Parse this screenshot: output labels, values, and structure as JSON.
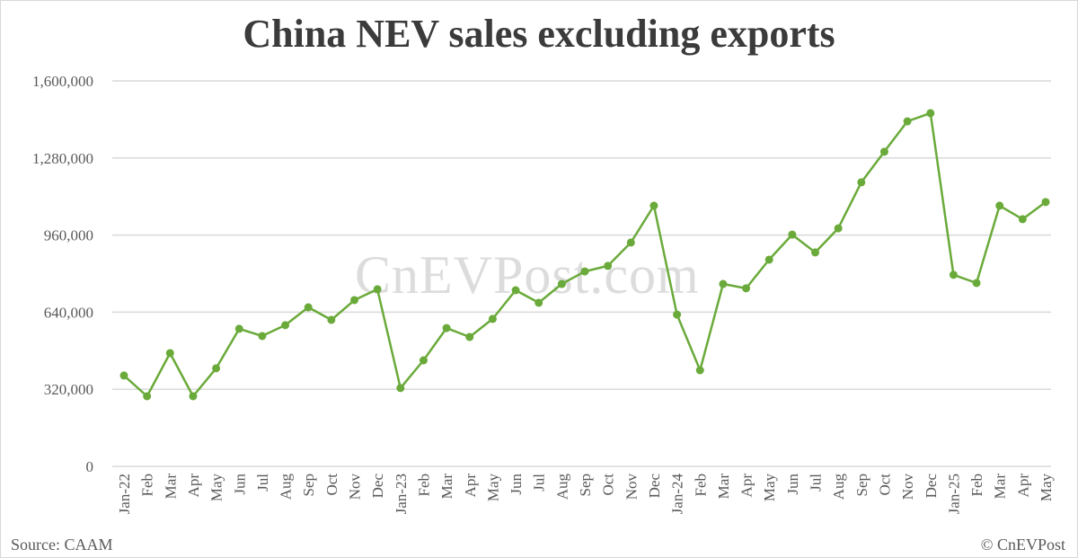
{
  "title": "China NEV sales excluding exports",
  "watermark": "CnEVPost.com",
  "footer": {
    "source": "Source: CAAM",
    "copyright": "© CnEVPost"
  },
  "colors": {
    "line": "#6aaa3a",
    "grid": "#d9d9d9",
    "text": "#595959",
    "title": "#3b3b3b"
  },
  "chart_data": {
    "type": "line",
    "title": "China NEV sales excluding exports",
    "xlabel": "",
    "ylabel": "",
    "ylim": [
      0,
      1600000
    ],
    "yticks": [
      0,
      320000,
      640000,
      960000,
      1280000,
      1600000
    ],
    "ytick_labels": [
      "0",
      "320,000",
      "640,000",
      "960,000",
      "1,280,000",
      "1,600,000"
    ],
    "grid": true,
    "legend": "none",
    "categories": [
      "Jan-22",
      "Feb",
      "Mar",
      "Apr",
      "May",
      "Jun",
      "Jul",
      "Aug",
      "Sep",
      "Oct",
      "Nov",
      "Dec",
      "Jan-23",
      "Feb",
      "Mar",
      "Apr",
      "May",
      "Jun",
      "Jul",
      "Aug",
      "Sep",
      "Oct",
      "Nov",
      "Dec",
      "Jan-24",
      "Feb",
      "Mar",
      "Apr",
      "May",
      "Jun",
      "Jul",
      "Aug",
      "Sep",
      "Oct",
      "Nov",
      "Dec",
      "Jan-25",
      "Feb",
      "Mar",
      "Apr",
      "May"
    ],
    "series": [
      {
        "name": "China NEV sales excluding exports",
        "values": [
          377000,
          291000,
          470000,
          291000,
          407000,
          571000,
          541000,
          586000,
          660000,
          608000,
          690000,
          735000,
          325000,
          440000,
          574000,
          537000,
          612000,
          731000,
          679000,
          757000,
          809000,
          832000,
          929000,
          1082000,
          630000,
          399000,
          757000,
          739000,
          858000,
          962000,
          888000,
          988000,
          1179000,
          1306000,
          1432000,
          1466000,
          795000,
          761000,
          1082000,
          1026000,
          1097000
        ]
      }
    ],
    "annotations": [
      "Source: CAAM",
      "© CnEVPost",
      "CnEVPost.com (watermark)"
    ]
  }
}
